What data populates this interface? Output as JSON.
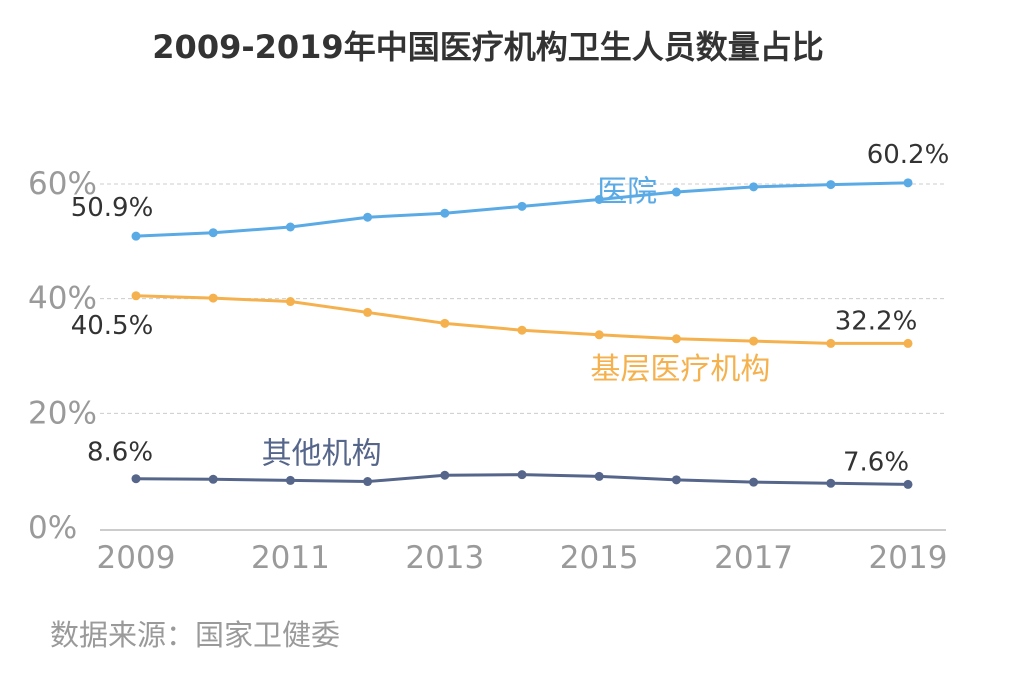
{
  "chart_data": {
    "type": "line",
    "title": "2009-2019年中国医疗机构卫生人员数量占比",
    "x": [
      2009,
      2010,
      2011,
      2012,
      2013,
      2014,
      2015,
      2016,
      2017,
      2018,
      2019
    ],
    "x_tick_labels": [
      "2009",
      "2011",
      "2013",
      "2015",
      "2017",
      "2019"
    ],
    "y_tick_labels": [
      "0%",
      "20%",
      "40%",
      "60%"
    ],
    "ylim": [
      0,
      60
    ],
    "grid": true,
    "series": [
      {
        "name": "医院",
        "color": "#5aaae6",
        "values": [
          50.9,
          51.5,
          52.5,
          54.2,
          54.9,
          56.1,
          57.3,
          58.6,
          59.5,
          59.9,
          60.2
        ],
        "start_label": "50.9%",
        "end_label": "60.2%"
      },
      {
        "name": "基层医疗机构",
        "color": "#f5b14d",
        "values": [
          40.5,
          40.1,
          39.5,
          37.6,
          35.7,
          34.5,
          33.7,
          33.0,
          32.6,
          32.2,
          32.2
        ],
        "start_label": "40.5%",
        "end_label": "32.2%"
      },
      {
        "name": "其他机构",
        "color": "#56668b",
        "values": [
          8.6,
          8.5,
          8.3,
          8.1,
          9.2,
          9.3,
          9.0,
          8.4,
          8.0,
          7.8,
          7.6
        ],
        "start_label": "8.6%",
        "end_label": "7.6%"
      }
    ]
  },
  "source": "数据来源：国家卫健委"
}
